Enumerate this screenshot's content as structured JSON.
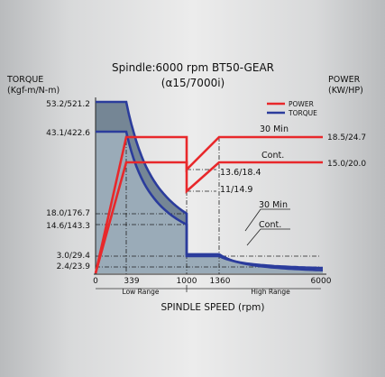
{
  "chart_data": {
    "type": "line",
    "title": "Spindle:6000 rpm BT50-GEAR",
    "subtitle": "(α15/7000i)",
    "xlabel": "SPINDLE SPEED (rpm)",
    "ylabel_left": [
      "TORQUE",
      "(Kgf-m/N-m)"
    ],
    "ylabel_right": [
      "POWER",
      "(KW/HP)"
    ],
    "xlim": [
      0,
      6000
    ],
    "x_ticks": [
      "0",
      "339",
      "1000",
      "1360",
      "6000"
    ],
    "x_ranges": [
      {
        "label": "Low Range",
        "from": 0,
        "to": 1000
      },
      {
        "label": "High Range",
        "from": 1000,
        "to": 6000
      }
    ],
    "torque_ticks": [
      {
        "label": "53.2/521.2",
        "value": 53.2
      },
      {
        "label": "43.1/422.6",
        "value": 43.1
      },
      {
        "label": "18.0/176.7",
        "value": 18.0
      },
      {
        "label": "14.6/143.3",
        "value": 14.6
      },
      {
        "label": "3.0/29.4",
        "value": 3.0
      },
      {
        "label": "2.4/23.9",
        "value": 2.4
      }
    ],
    "power_ticks": [
      {
        "label": "18.5/24.7",
        "value": 18.5
      },
      {
        "label": "15.0/20.0",
        "value": 15.0
      }
    ],
    "legend": [
      {
        "name": "POWER",
        "color": "#e8282b"
      },
      {
        "name": "TORQUE",
        "color": "#2b3c9c"
      }
    ],
    "series": [
      {
        "name": "POWER",
        "curve": "30 Min",
        "x": [
          0,
          339,
          1000,
          1000,
          1360,
          6000
        ],
        "y": [
          0,
          18.5,
          18.5,
          13.6,
          18.5,
          18.5
        ]
      },
      {
        "name": "POWER",
        "curve": "Cont.",
        "x": [
          0,
          339,
          1000,
          1000,
          1360,
          6000
        ],
        "y": [
          0,
          15.0,
          15.0,
          11.0,
          15.0,
          15.0
        ]
      },
      {
        "name": "TORQUE",
        "curve": "30 Min",
        "x": [
          0,
          339,
          500,
          700,
          1000,
          1000,
          1360,
          2000,
          3000,
          4500,
          6000
        ],
        "y": [
          53.2,
          53.2,
          36.1,
          25.8,
          18.0,
          3.7,
          3.7,
          2.5,
          1.7,
          1.1,
          0.83
        ]
      },
      {
        "name": "TORQUE",
        "curve": "Cont.",
        "x": [
          0,
          339,
          500,
          700,
          1000,
          1000,
          1360,
          2000,
          3000,
          4500,
          6000
        ],
        "y": [
          43.1,
          43.1,
          29.2,
          20.9,
          14.6,
          3.0,
          3.0,
          2.0,
          1.35,
          0.9,
          0.68
        ]
      }
    ],
    "annotations": {
      "power_30min": "30 Min",
      "power_cont": "Cont.",
      "power_dip_30min": "13.6/18.4",
      "power_dip_cont": "11/14.9",
      "torque_30min": "30 Min",
      "torque_cont": "Cont."
    },
    "colors": {
      "power": "#e8282b",
      "torque": "#2b3c9c",
      "fill": "#9aabb8",
      "band_fill": "#6e7f8e"
    },
    "grid": false,
    "legend_position": "top-right"
  }
}
